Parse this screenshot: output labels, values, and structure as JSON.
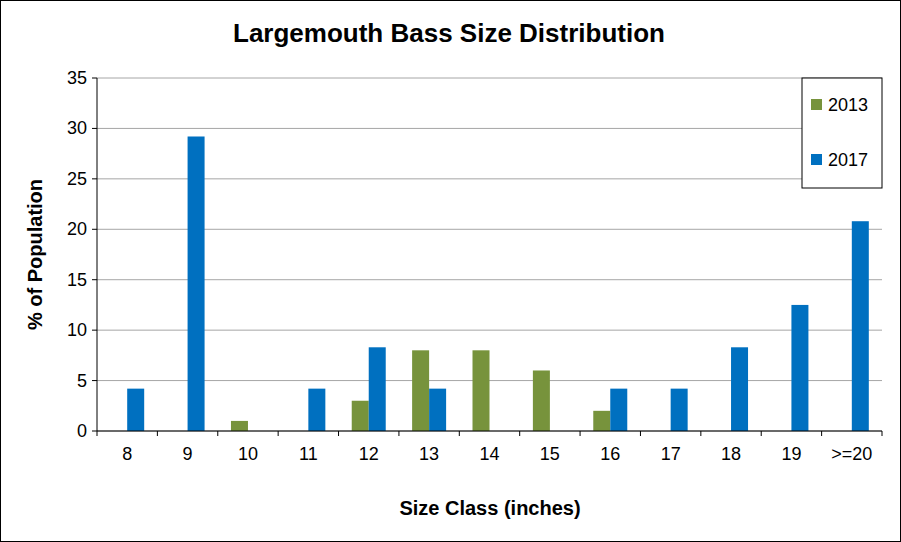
{
  "chart_data": {
    "type": "bar",
    "title": "Largemouth Bass Size Distribution",
    "x_label": "Size Class (inches)",
    "y_label": "% of Population",
    "categories": [
      "8",
      "9",
      "10",
      "11",
      "12",
      "13",
      "14",
      "15",
      "16",
      "17",
      "18",
      "19",
      ">=20"
    ],
    "series": [
      {
        "name": "2013",
        "color": "#77933c",
        "values": [
          null,
          null,
          1,
          null,
          3,
          8,
          8,
          6,
          2,
          null,
          null,
          null,
          null
        ]
      },
      {
        "name": "2017",
        "color": "#0070c0",
        "values": [
          4.2,
          29.2,
          null,
          4.2,
          8.3,
          4.2,
          null,
          null,
          4.2,
          4.2,
          8.3,
          12.5,
          20.8
        ]
      }
    ],
    "ylim": [
      0,
      35
    ],
    "yticks": [
      0,
      5,
      10,
      15,
      20,
      25,
      30,
      35
    ],
    "grid": true,
    "legend": "top-right"
  }
}
